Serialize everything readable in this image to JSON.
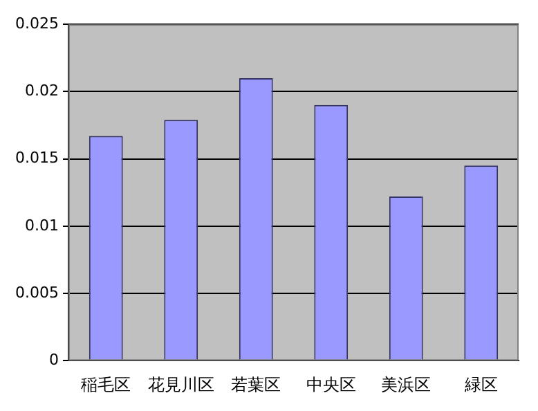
{
  "chart_data": {
    "type": "bar",
    "categories": [
      "稲毛区",
      "花見川区",
      "若葉区",
      "中央区",
      "美浜区",
      "緑区"
    ],
    "values": [
      0.0167,
      0.0179,
      0.021,
      0.019,
      0.0122,
      0.0145
    ],
    "color": "#9999ff",
    "ylim": [
      0,
      0.025
    ],
    "yticks": [
      0,
      0.005,
      0.01,
      0.015,
      0.02,
      0.025
    ],
    "grid": "y",
    "legend": false
  }
}
